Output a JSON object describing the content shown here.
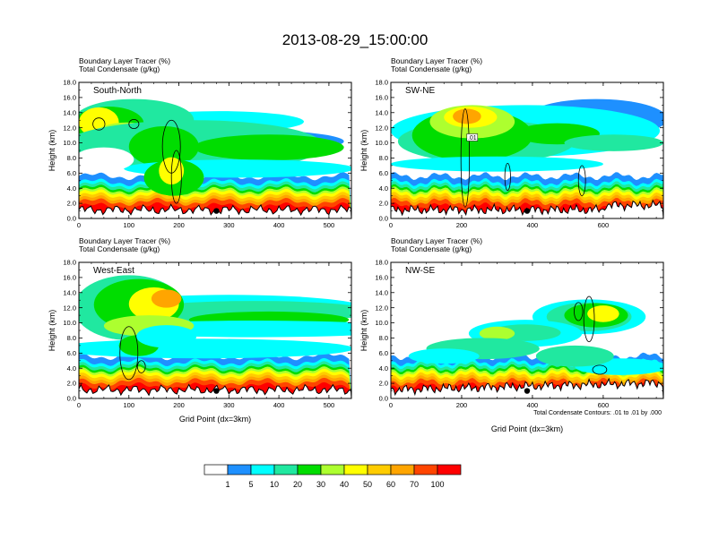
{
  "title": "2013-08-29_15:00:00",
  "footnote": "Total Condensate Contours: .01 to .01 by .000",
  "colorbar": {
    "colors": [
      "#ffffff",
      "#1e90ff",
      "#00ffff",
      "#20e8a0",
      "#00dd00",
      "#adff2f",
      "#ffff00",
      "#ffcc00",
      "#ffa500",
      "#ff4500",
      "#ff0000"
    ],
    "labels": [
      "1",
      "5",
      "10",
      "20",
      "30",
      "40",
      "50",
      "60",
      "70",
      "100"
    ]
  },
  "chart_data": [
    {
      "type": "heatmap",
      "panel_label": "South-North",
      "title_lines": [
        "Boundary Layer Tracer   (%)",
        "Total Condensate   (g/kg)"
      ],
      "xlabel": "",
      "ylabel": "Height (km)",
      "xlim": [
        0,
        545
      ],
      "ylim": [
        0,
        18
      ],
      "x_ticks": [
        "0",
        "100",
        "200",
        "300",
        "400",
        "500"
      ],
      "y_ticks": [
        "0.0",
        "2.0",
        "4.0",
        "6.0",
        "8.0",
        "10.0",
        "12.0",
        "14.0",
        "16.0",
        "18.0"
      ],
      "marker_x": 275,
      "contour_label": ""
    },
    {
      "type": "heatmap",
      "panel_label": "SW-NE",
      "title_lines": [
        "Boundary Layer Tracer   (%)",
        "Total Condensate   (g/kg)"
      ],
      "xlabel": "",
      "ylabel": "Height (km)",
      "xlim": [
        0,
        770
      ],
      "ylim": [
        0,
        18
      ],
      "x_ticks": [
        "0",
        "200",
        "400",
        "600"
      ],
      "y_ticks": [
        "0.0",
        "2.0",
        "4.0",
        "6.0",
        "8.0",
        "10.0",
        "12.0",
        "14.0",
        "16.0",
        "18.0"
      ],
      "marker_x": 385,
      "contour_label": ".01"
    },
    {
      "type": "heatmap",
      "panel_label": "West-East",
      "title_lines": [
        "Boundary Layer Tracer   (%)",
        "Total Condensate   (g/kg)"
      ],
      "xlabel": "Grid Point (dx=3km)",
      "ylabel": "Height (km)",
      "xlim": [
        0,
        545
      ],
      "ylim": [
        0,
        18
      ],
      "x_ticks": [
        "0",
        "100",
        "200",
        "300",
        "400",
        "500"
      ],
      "y_ticks": [
        "0.0",
        "2.0",
        "4.0",
        "6.0",
        "8.0",
        "10.0",
        "12.0",
        "14.0",
        "16.0",
        "18.0"
      ],
      "marker_x": 275,
      "contour_label": ""
    },
    {
      "type": "heatmap",
      "panel_label": "NW-SE",
      "title_lines": [
        "Boundary Layer Tracer   (%)",
        "Total Condensate   (g/kg)"
      ],
      "xlabel": "Grid Point (dx=3km)",
      "ylabel": "Height (km)",
      "xlim": [
        0,
        770
      ],
      "ylim": [
        0,
        18
      ],
      "x_ticks": [
        "0",
        "200",
        "400",
        "600"
      ],
      "y_ticks": [
        "0.0",
        "2.0",
        "4.0",
        "6.0",
        "8.0",
        "10.0",
        "12.0",
        "14.0",
        "16.0",
        "18.0"
      ],
      "marker_x": 385,
      "contour_label": ""
    }
  ]
}
